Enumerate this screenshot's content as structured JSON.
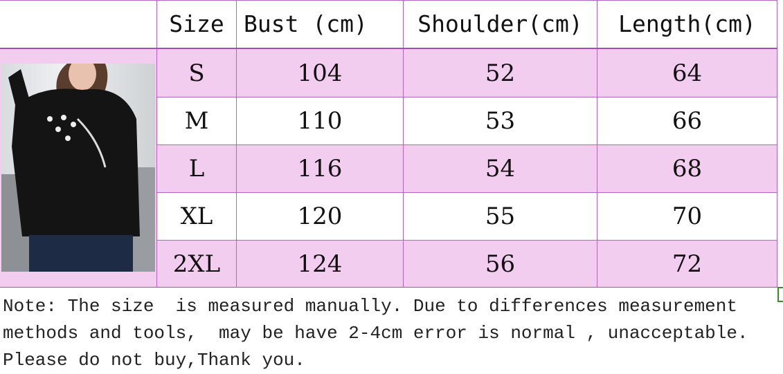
{
  "table": {
    "headers": [
      "Size",
      "Bust (cm)",
      "Shoulder(cm)",
      "Length(cm)"
    ],
    "rows": [
      [
        "S",
        "104",
        "52",
        "64"
      ],
      [
        "M",
        "110",
        "53",
        "66"
      ],
      [
        "L",
        "116",
        "54",
        "68"
      ],
      [
        "XL",
        "120",
        "55",
        "70"
      ],
      [
        "2XL",
        "124",
        "56",
        "72"
      ]
    ]
  },
  "note": {
    "lines": [
      "Note: The size  is measured manually. Due to differences measurement",
      "methods and tools,  may be have 2-4cm error is normal , unacceptable.",
      "Please do not buy,Thank you."
    ]
  },
  "colors": {
    "row_pink": "#f2cdef",
    "border": "#b566c4"
  }
}
